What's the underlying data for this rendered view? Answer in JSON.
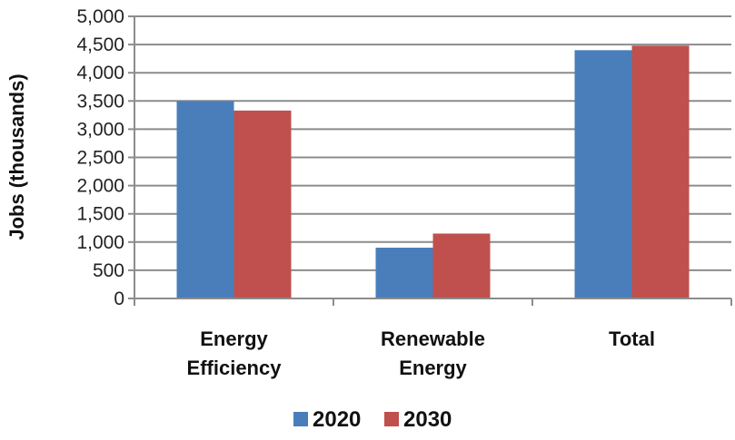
{
  "chart_data": {
    "type": "bar",
    "title": "",
    "xlabel": "",
    "ylabel": "Jobs (thousands)",
    "ylim": [
      0,
      5000
    ],
    "yticks": [
      0,
      500,
      1000,
      1500,
      2000,
      2500,
      3000,
      3500,
      4000,
      4500,
      5000
    ],
    "ytick_labels": [
      "0",
      "500",
      "1,000",
      "1,500",
      "2,000",
      "2,500",
      "3,000",
      "3,500",
      "4,000",
      "4,500",
      "5,000"
    ],
    "grid": true,
    "legend_position": "bottom",
    "categories": [
      [
        "Energy",
        "Efficiency"
      ],
      [
        "Renewable",
        "Energy"
      ],
      [
        "Total"
      ]
    ],
    "series": [
      {
        "name": "2020",
        "color": "#4a7ebb",
        "values": [
          3500,
          900,
          4400
        ]
      },
      {
        "name": "2030",
        "color": "#c0504d",
        "values": [
          3330,
          1150,
          4480
        ]
      }
    ]
  }
}
